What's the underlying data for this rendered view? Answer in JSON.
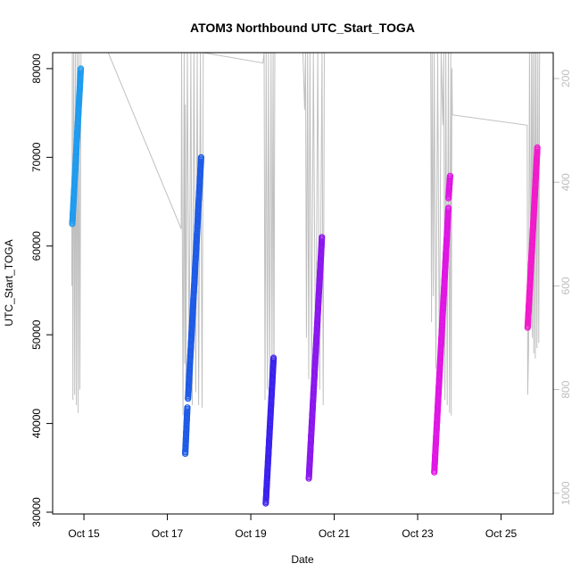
{
  "chart_data": {
    "type": "scatter",
    "title": "ATOM3 Northbound UTC_Start_TOGA",
    "xlabel": "Date",
    "ylabel": "UTC_Start_TOGA",
    "xlim": [
      "2016-10-14 06:00",
      "2016-10-26 06:00"
    ],
    "ylim": [
      29800,
      81800
    ],
    "x_ticks": [
      {
        "date": "2016-10-15",
        "label": "Oct 15"
      },
      {
        "date": "2016-10-17",
        "label": "Oct 17"
      },
      {
        "date": "2016-10-19",
        "label": "Oct 19"
      },
      {
        "date": "2016-10-21",
        "label": "Oct 21"
      },
      {
        "date": "2016-10-23",
        "label": "Oct 23"
      },
      {
        "date": "2016-10-25",
        "label": "Oct 25"
      }
    ],
    "y_ticks": [
      30000,
      40000,
      50000,
      60000,
      70000,
      80000
    ],
    "y2_lim": [
      1040,
      150
    ],
    "y2_ticks": [
      200,
      400,
      600,
      800,
      1000
    ],
    "grid": false,
    "series": [
      {
        "color": "#1e9bf0",
        "points": [
          [
            "2016-10-14 17:18",
            62500
          ],
          [
            "2016-10-14 22:13",
            80000
          ]
        ]
      },
      {
        "color": "#1d5ae6",
        "points": [
          [
            "2016-10-17 10:17",
            36600
          ],
          [
            "2016-10-17 11:30",
            41800
          ]
        ]
      },
      {
        "color": "#1d5ae6",
        "points": [
          [
            "2016-10-17 11:54",
            42800
          ],
          [
            "2016-10-17 19:26",
            70000
          ]
        ]
      },
      {
        "color": "#3a20ee",
        "points": [
          [
            "2016-10-19 08:37",
            31000
          ],
          [
            "2016-10-19 13:07",
            47400
          ]
        ]
      },
      {
        "color": "#8a16ee",
        "points": [
          [
            "2016-10-20 09:24",
            33800
          ],
          [
            "2016-10-20 16:56",
            61000
          ]
        ]
      },
      {
        "color": "#e014e4",
        "points": [
          [
            "2016-10-23 09:34",
            34500
          ],
          [
            "2016-10-23 17:40",
            64300
          ]
        ]
      },
      {
        "color": "#e014e4",
        "points": [
          [
            "2016-10-23 17:44",
            65400
          ],
          [
            "2016-10-23 18:41",
            67900
          ]
        ]
      },
      {
        "color": "#f219cc",
        "points": [
          [
            "2016-10-25 15:17",
            50800
          ],
          [
            "2016-10-25 20:52",
            71100
          ]
        ]
      }
    ],
    "secondary_line": {
      "color": "#c0c0c0",
      "points": [
        [
          "2016-10-14 17:00",
          600
        ],
        [
          "2016-10-14 17:20",
          150
        ],
        [
          "2016-10-14 17:40",
          820
        ],
        [
          "2016-10-14 18:10",
          150
        ],
        [
          "2016-10-14 18:40",
          810
        ],
        [
          "2016-10-14 19:10",
          150
        ],
        [
          "2016-10-14 19:40",
          830
        ],
        [
          "2016-10-14 20:10",
          150
        ],
        [
          "2016-10-14 20:40",
          845
        ],
        [
          "2016-10-14 21:10",
          150
        ],
        [
          "2016-10-14 21:40",
          800
        ],
        [
          "2016-10-14 22:20",
          150
        ],
        [
          "2016-10-15 14:00",
          150
        ],
        [
          "2016-10-17 08:00",
          490
        ],
        [
          "2016-10-17 08:10",
          150
        ],
        [
          "2016-10-17 09:00",
          850
        ],
        [
          "2016-10-17 09:40",
          150
        ],
        [
          "2016-10-17 10:00",
          750
        ],
        [
          "2016-10-17 10:20",
          250
        ],
        [
          "2016-10-17 10:40",
          800
        ],
        [
          "2016-10-17 11:30",
          150
        ],
        [
          "2016-10-17 12:30",
          760
        ],
        [
          "2016-10-17 13:30",
          150
        ],
        [
          "2016-10-17 14:20",
          830
        ],
        [
          "2016-10-17 15:20",
          150
        ],
        [
          "2016-10-17 16:20",
          805
        ],
        [
          "2016-10-17 17:10",
          150
        ],
        [
          "2016-10-17 18:00",
          830
        ],
        [
          "2016-10-17 19:00",
          150
        ],
        [
          "2016-10-17 20:00",
          835
        ],
        [
          "2016-10-17 20:40",
          150
        ],
        [
          "2016-10-19 07:00",
          170
        ],
        [
          "2016-10-19 07:40",
          150
        ],
        [
          "2016-10-19 08:10",
          820
        ],
        [
          "2016-10-19 08:50",
          150
        ],
        [
          "2016-10-19 09:30",
          800
        ],
        [
          "2016-10-19 10:10",
          150
        ],
        [
          "2016-10-19 10:50",
          790
        ],
        [
          "2016-10-19 11:40",
          150
        ],
        [
          "2016-10-19 12:10",
          760
        ],
        [
          "2016-10-19 12:50",
          150
        ],
        [
          "2016-10-19 13:20",
          805
        ],
        [
          "2016-10-19 13:50",
          150
        ],
        [
          "2016-10-20 06:00",
          150
        ],
        [
          "2016-10-20 07:00",
          260
        ],
        [
          "2016-10-20 07:30",
          150
        ],
        [
          "2016-10-20 08:00",
          700
        ],
        [
          "2016-10-20 08:40",
          150
        ],
        [
          "2016-10-20 09:20",
          780
        ],
        [
          "2016-10-20 10:00",
          150
        ],
        [
          "2016-10-20 11:00",
          780
        ],
        [
          "2016-10-20 12:00",
          150
        ],
        [
          "2016-10-20 13:20",
          820
        ],
        [
          "2016-10-20 14:30",
          150
        ],
        [
          "2016-10-20 15:40",
          800
        ],
        [
          "2016-10-20 17:00",
          150
        ],
        [
          "2016-10-20 17:40",
          830
        ],
        [
          "2016-10-20 18:20",
          150
        ],
        [
          "2016-10-23 07:30",
          150
        ],
        [
          "2016-10-23 08:00",
          670
        ],
        [
          "2016-10-23 08:20",
          150
        ],
        [
          "2016-10-23 09:00",
          620
        ],
        [
          "2016-10-23 09:30",
          150
        ],
        [
          "2016-10-23 10:30",
          760
        ],
        [
          "2016-10-23 11:30",
          150
        ],
        [
          "2016-10-23 12:30",
          770
        ],
        [
          "2016-10-23 13:30",
          150
        ],
        [
          "2016-10-23 14:30",
          290
        ],
        [
          "2016-10-23 15:00",
          150
        ],
        [
          "2016-10-23 15:40",
          820
        ],
        [
          "2016-10-23 16:10",
          150
        ],
        [
          "2016-10-23 17:00",
          830
        ],
        [
          "2016-10-23 17:40",
          150
        ],
        [
          "2016-10-23 18:20",
          845
        ],
        [
          "2016-10-23 19:00",
          150
        ],
        [
          "2016-10-23 19:20",
          850
        ],
        [
          "2016-10-23 19:40",
          180
        ],
        [
          "2016-10-23 20:00",
          270
        ],
        [
          "2016-10-25 15:00",
          290
        ],
        [
          "2016-10-25 15:20",
          810
        ],
        [
          "2016-10-25 15:50",
          720
        ],
        [
          "2016-10-25 16:20",
          150
        ],
        [
          "2016-10-25 17:10",
          680
        ],
        [
          "2016-10-25 17:30",
          150
        ],
        [
          "2016-10-25 18:00",
          700
        ],
        [
          "2016-10-25 18:20",
          150
        ],
        [
          "2016-10-25 18:50",
          730
        ],
        [
          "2016-10-25 19:20",
          150
        ],
        [
          "2016-10-25 19:40",
          740
        ],
        [
          "2016-10-25 20:10",
          150
        ],
        [
          "2016-10-25 20:40",
          720
        ],
        [
          "2016-10-25 21:10",
          150
        ],
        [
          "2016-10-25 21:40",
          710
        ],
        [
          "2016-10-25 22:10",
          150
        ]
      ]
    }
  }
}
